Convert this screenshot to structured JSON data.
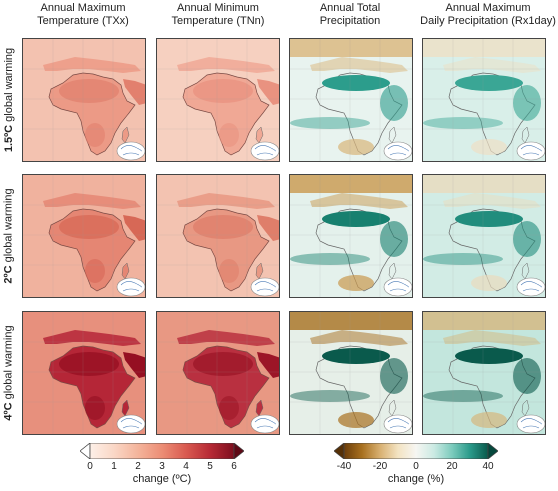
{
  "columns": [
    {
      "title_line1": "Annual Maximum",
      "title_line2": "Temperature (TXx)"
    },
    {
      "title_line1": "Annual Minimum",
      "title_line2": "Temperature (TNn)"
    },
    {
      "title_line1": "Annual Total",
      "title_line2": "Precipitation"
    },
    {
      "title_line1": "Annual Maximum",
      "title_line2": "Daily Precipitation (Rx1day)"
    }
  ],
  "rows": [
    {
      "level": "1.5ºC",
      "suffix": " global warming"
    },
    {
      "level": "2ºC",
      "suffix": " global warming"
    },
    {
      "level": "4ºC",
      "suffix": " global warming"
    }
  ],
  "temp_colorbar": {
    "label": "change (ºC)",
    "ticks": [
      "0",
      "1",
      "2",
      "3",
      "4",
      "5",
      "6"
    ],
    "colors": [
      "#fdf0e8",
      "#fad7c6",
      "#f4b49b",
      "#ec8d75",
      "#d95a50",
      "#b72a35",
      "#7e0f1f"
    ]
  },
  "precip_colorbar": {
    "label": "change (%)",
    "ticks": [
      "-40",
      "-20",
      "0",
      "20",
      "40"
    ],
    "colors": [
      "#6b3d0a",
      "#a8701f",
      "#d8b071",
      "#f3e3c2",
      "#f6f6f2",
      "#cbeae3",
      "#7ccbbd",
      "#2a9a8a",
      "#0a5a4c"
    ]
  },
  "panel_colors": {
    "temp": [
      {
        "ocean": "#f3c2b0",
        "land": "#ec9a86",
        "hot": "#e2806e"
      },
      {
        "ocean": "#f0b29e",
        "land": "#e58673",
        "hot": "#d76856"
      },
      {
        "ocean": "#e7907d",
        "land": "#b52637",
        "hot": "#950f22"
      }
    ],
    "tmin": [
      {
        "ocean": "#f6d0c0",
        "land": "#f0a895",
        "hot": "#e99280"
      },
      {
        "ocean": "#f3c3b1",
        "land": "#e89883",
        "hot": "#df7e6a"
      },
      {
        "ocean": "#e89883",
        "land": "#b93040",
        "hot": "#9c1527"
      }
    ],
    "precip": [
      {
        "base": "#e8f3ef",
        "wet": "#2c9d8c",
        "dry": "#d9b57a"
      },
      {
        "base": "#e4f1ec",
        "wet": "#17806f",
        "dry": "#c9994e"
      },
      {
        "base": "#e6efe8",
        "wet": "#0a5a4c",
        "dry": "#a8701f"
      }
    ],
    "rx1day": [
      {
        "base": "#d9efe9",
        "wet": "#3aa695",
        "dry": "#eee0c4"
      },
      {
        "base": "#d2ece5",
        "wet": "#218d7d",
        "dry": "#eadbbd"
      },
      {
        "base": "#c3e6dd",
        "wet": "#0a5a4c",
        "dry": "#d6b77e"
      }
    ]
  }
}
